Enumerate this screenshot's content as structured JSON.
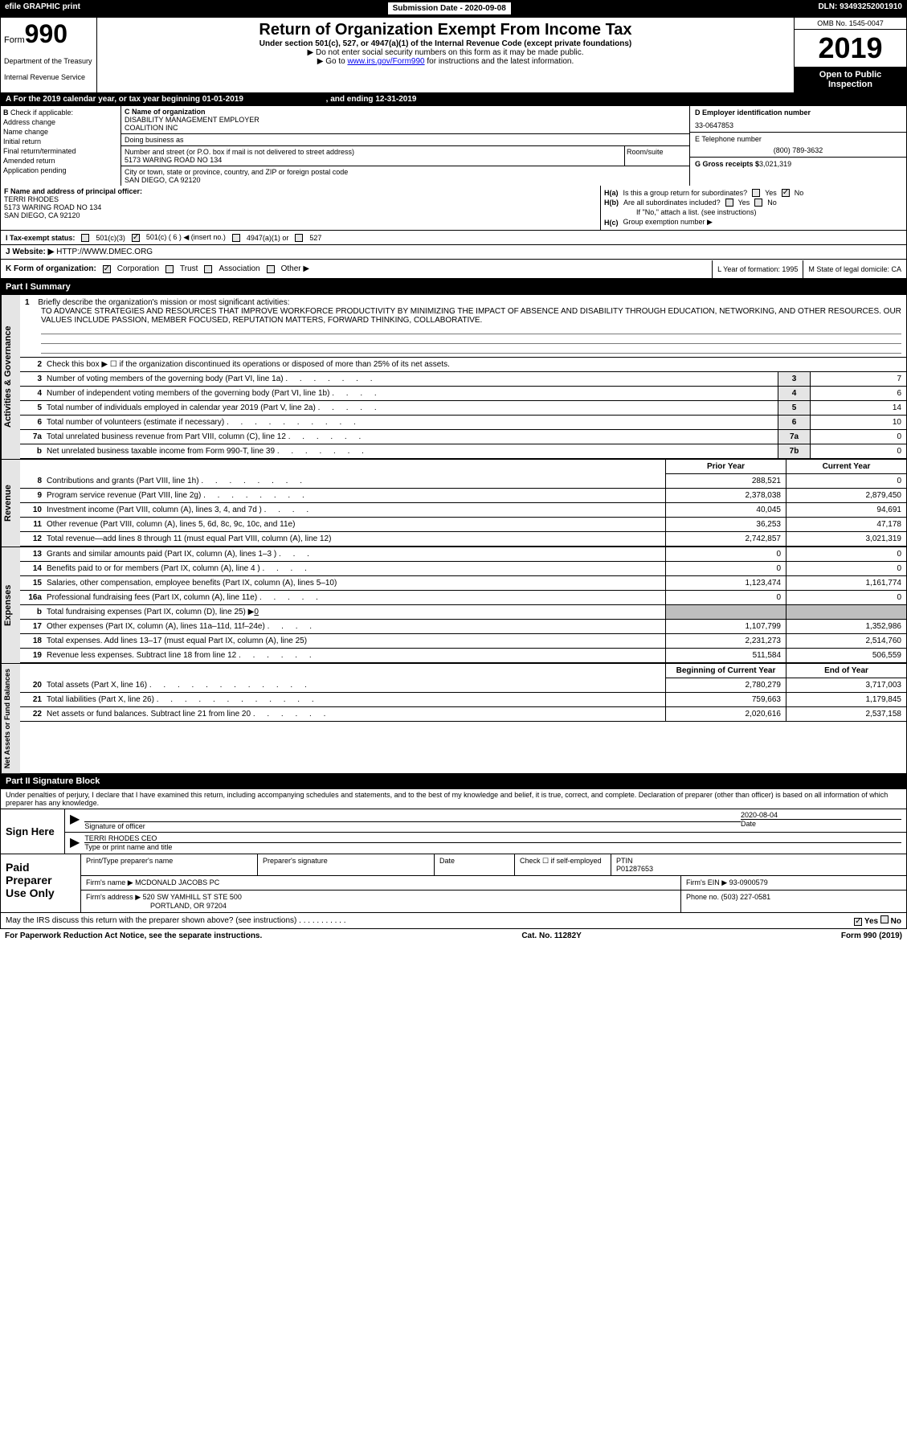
{
  "topBar": {
    "efile": "efile GRAPHIC print",
    "submission": "Submission Date - 2020-09-08",
    "dln": "DLN: 93493252001910"
  },
  "header": {
    "formLabel": "Form",
    "formNum": "990",
    "dept1": "Department of the Treasury",
    "dept2": "Internal Revenue Service",
    "title": "Return of Organization Exempt From Income Tax",
    "subtitle": "Under section 501(c), 527, or 4947(a)(1) of the Internal Revenue Code (except private foundations)",
    "note1": "▶ Do not enter social security numbers on this form as it may be made public.",
    "note2a": "▶ Go to ",
    "note2link": "www.irs.gov/Form990",
    "note2b": " for instructions and the latest information.",
    "omb": "OMB No. 1545-0047",
    "year": "2019",
    "openPublic": "Open to Public Inspection"
  },
  "rowA": {
    "text": "A   For the 2019 calendar year, or tax year beginning 01-01-2019",
    "ending": ", and ending 12-31-2019"
  },
  "colB": {
    "label": "B",
    "check": "Check if applicable:",
    "items": [
      "Address change",
      "Name change",
      "Initial return",
      "Final return/terminated",
      "Amended return",
      "Application pending"
    ]
  },
  "colC": {
    "nameLabel": "C Name of organization",
    "name1": "DISABILITY MANAGEMENT EMPLOYER",
    "name2": "COALITION INC",
    "dbaLabel": "Doing business as",
    "addrLabel": "Number and street (or P.O. box if mail is not delivered to street address)",
    "addr": "5173 WARING ROAD NO 134",
    "roomLabel": "Room/suite",
    "cityLabel": "City or town, state or province, country, and ZIP or foreign postal code",
    "city": "SAN DIEGO, CA  92120"
  },
  "colD": {
    "einLabel": "D Employer identification number",
    "ein": "33-0647853",
    "phoneLabel": "E Telephone number",
    "phone": "(800) 789-3632",
    "grossLabel": "G Gross receipts $",
    "gross": "3,021,319"
  },
  "colF": {
    "label": "F  Name and address of principal officer:",
    "name": "TERRI RHODES",
    "addr": "5173 WARING ROAD NO 134",
    "city": "SAN DIEGO, CA  92120"
  },
  "colH": {
    "ha": "H(a)",
    "haText": "Is this a group return for subordinates?",
    "hb": "H(b)",
    "hbText": "Are all subordinates included?",
    "hbNote": "If \"No,\" attach a list. (see instructions)",
    "hc": "H(c)",
    "hcText": "Group exemption number ▶",
    "yes": "Yes",
    "no": "No"
  },
  "taxStatus": {
    "label": "I   Tax-exempt status:",
    "opt1": "501(c)(3)",
    "opt2": "501(c) ( 6 ) ◀ (insert no.)",
    "opt3": "4947(a)(1) or",
    "opt4": "527"
  },
  "website": {
    "label": "J   Website: ▶",
    "url": "HTTP://WWW.DMEC.ORG"
  },
  "kRow": {
    "label": "K Form of organization:",
    "opts": [
      "Corporation",
      "Trust",
      "Association",
      "Other ▶"
    ],
    "yearLabel": "L Year of formation:",
    "year": "1995",
    "stateLabel": "M State of legal domicile:",
    "state": "CA"
  },
  "part1": {
    "header": "Part I       Summary"
  },
  "activities": {
    "label": "Activities & Governance",
    "line1": "1",
    "line1Text": "Briefly describe the organization's mission or most significant activities:",
    "mission": "TO ADVANCE STRATEGIES AND RESOURCES THAT IMPROVE WORKFORCE PRODUCTIVITY BY MINIMIZING THE IMPACT OF ABSENCE AND DISABILITY THROUGH EDUCATION, NETWORKING, AND OTHER RESOURCES. OUR VALUES INCLUDE PASSION, MEMBER FOCUSED, REPUTATION MATTERS, FORWARD THINKING, COLLABORATIVE.",
    "rows": [
      {
        "num": "2",
        "label": "Check this box ▶ ☐ if the organization discontinued its operations or disposed of more than 25% of its net assets.",
        "box": "",
        "val": ""
      },
      {
        "num": "3",
        "label": "Number of voting members of the governing body (Part VI, line 1a)",
        "dots": ". . . . . . .",
        "box": "3",
        "val": "7"
      },
      {
        "num": "4",
        "label": "Number of independent voting members of the governing body (Part VI, line 1b)",
        "dots": ". . . .",
        "box": "4",
        "val": "6"
      },
      {
        "num": "5",
        "label": "Total number of individuals employed in calendar year 2019 (Part V, line 2a)",
        "dots": ". . . . .",
        "box": "5",
        "val": "14"
      },
      {
        "num": "6",
        "label": "Total number of volunteers (estimate if necessary)",
        "dots": ". . . . . . . . . .",
        "box": "6",
        "val": "10"
      },
      {
        "num": "7a",
        "label": "Total unrelated business revenue from Part VIII, column (C), line 12",
        "dots": ". . . . . .",
        "box": "7a",
        "val": "0"
      },
      {
        "num": "b",
        "label": "Net unrelated business taxable income from Form 990-T, line 39",
        "dots": ". . . . . . .",
        "box": "7b",
        "val": "0"
      }
    ]
  },
  "revenue": {
    "label": "Revenue",
    "priorHeader": "Prior Year",
    "currentHeader": "Current Year",
    "rows": [
      {
        "num": "8",
        "label": "Contributions and grants (Part VIII, line 1h)",
        "dots": ". . . . . . . .",
        "prior": "288,521",
        "current": "0"
      },
      {
        "num": "9",
        "label": "Program service revenue (Part VIII, line 2g)",
        "dots": ". . . . . . . .",
        "prior": "2,378,038",
        "current": "2,879,450"
      },
      {
        "num": "10",
        "label": "Investment income (Part VIII, column (A), lines 3, 4, and 7d )",
        "dots": ". . . .",
        "prior": "40,045",
        "current": "94,691"
      },
      {
        "num": "11",
        "label": "Other revenue (Part VIII, column (A), lines 5, 6d, 8c, 9c, 10c, and 11e)",
        "dots": "",
        "prior": "36,253",
        "current": "47,178"
      },
      {
        "num": "12",
        "label": "Total revenue—add lines 8 through 11 (must equal Part VIII, column (A), line 12)",
        "dots": "",
        "prior": "2,742,857",
        "current": "3,021,319"
      }
    ]
  },
  "expenses": {
    "label": "Expenses",
    "rows": [
      {
        "num": "13",
        "label": "Grants and similar amounts paid (Part IX, column (A), lines 1–3 )",
        "dots": ". . .",
        "prior": "0",
        "current": "0"
      },
      {
        "num": "14",
        "label": "Benefits paid to or for members (Part IX, column (A), line 4 )",
        "dots": ". . . .",
        "prior": "0",
        "current": "0"
      },
      {
        "num": "15",
        "label": "Salaries, other compensation, employee benefits (Part IX, column (A), lines 5–10)",
        "dots": "",
        "prior": "1,123,474",
        "current": "1,161,774"
      },
      {
        "num": "16a",
        "label": "Professional fundraising fees (Part IX, column (A), line 11e)",
        "dots": ". . . . .",
        "prior": "0",
        "current": "0"
      },
      {
        "num": "b",
        "label": "Total fundraising expenses (Part IX, column (D), line 25) ▶",
        "extra": "0",
        "prior": "",
        "current": "",
        "gray": true
      },
      {
        "num": "17",
        "label": "Other expenses (Part IX, column (A), lines 11a–11d, 11f–24e)",
        "dots": ". . . .",
        "prior": "1,107,799",
        "current": "1,352,986"
      },
      {
        "num": "18",
        "label": "Total expenses. Add lines 13–17 (must equal Part IX, column (A), line 25)",
        "dots": "",
        "prior": "2,231,273",
        "current": "2,514,760"
      },
      {
        "num": "19",
        "label": "Revenue less expenses. Subtract line 18 from line 12",
        "dots": ". . . . . .",
        "prior": "511,584",
        "current": "506,559"
      }
    ]
  },
  "netAssets": {
    "label": "Net Assets or Fund Balances",
    "begHeader": "Beginning of Current Year",
    "endHeader": "End of Year",
    "rows": [
      {
        "num": "20",
        "label": "Total assets (Part X, line 16)",
        "dots": ". . . . . . . . . . . .",
        "prior": "2,780,279",
        "current": "3,717,003"
      },
      {
        "num": "21",
        "label": "Total liabilities (Part X, line 26)",
        "dots": ". . . . . . . . . . . .",
        "prior": "759,663",
        "current": "1,179,845"
      },
      {
        "num": "22",
        "label": "Net assets or fund balances. Subtract line 21 from line 20",
        "dots": ". . . . . .",
        "prior": "2,020,616",
        "current": "2,537,158"
      }
    ]
  },
  "part2": {
    "header": "Part II       Signature Block"
  },
  "penalty": "Under penalties of perjury, I declare that I have examined this return, including accompanying schedules and statements, and to the best of my knowledge and belief, it is true, correct, and complete. Declaration of preparer (other than officer) is based on all information of which preparer has any knowledge.",
  "signHere": {
    "label": "Sign Here",
    "sigLabel": "Signature of officer",
    "date": "2020-08-04",
    "dateLabel": "Date",
    "name": "TERRI RHODES CEO",
    "nameLabel": "Type or print name and title"
  },
  "paidPrep": {
    "label": "Paid Preparer Use Only",
    "printLabel": "Print/Type preparer's name",
    "sigLabel": "Preparer's signature",
    "dateLabel": "Date",
    "checkLabel": "Check ☐ if self-employed",
    "ptinLabel": "PTIN",
    "ptin": "P01287653",
    "firmNameLabel": "Firm's name    ▶",
    "firmName": "MCDONALD JACOBS PC",
    "firmEinLabel": "Firm's EIN ▶",
    "firmEin": "93-0900579",
    "firmAddrLabel": "Firm's address ▶",
    "firmAddr1": "520 SW YAMHILL ST STE 500",
    "firmAddr2": "PORTLAND, OR  97204",
    "phoneLabel": "Phone no.",
    "phone": "(503) 227-0581"
  },
  "discuss": {
    "text": "May the IRS discuss this return with the preparer shown above? (see instructions)",
    "dots": ". . . . . . . . . . .",
    "yes": "Yes",
    "no": "No"
  },
  "footer": {
    "left": "For Paperwork Reduction Act Notice, see the separate instructions.",
    "mid": "Cat. No. 11282Y",
    "right": "Form 990 (2019)"
  }
}
